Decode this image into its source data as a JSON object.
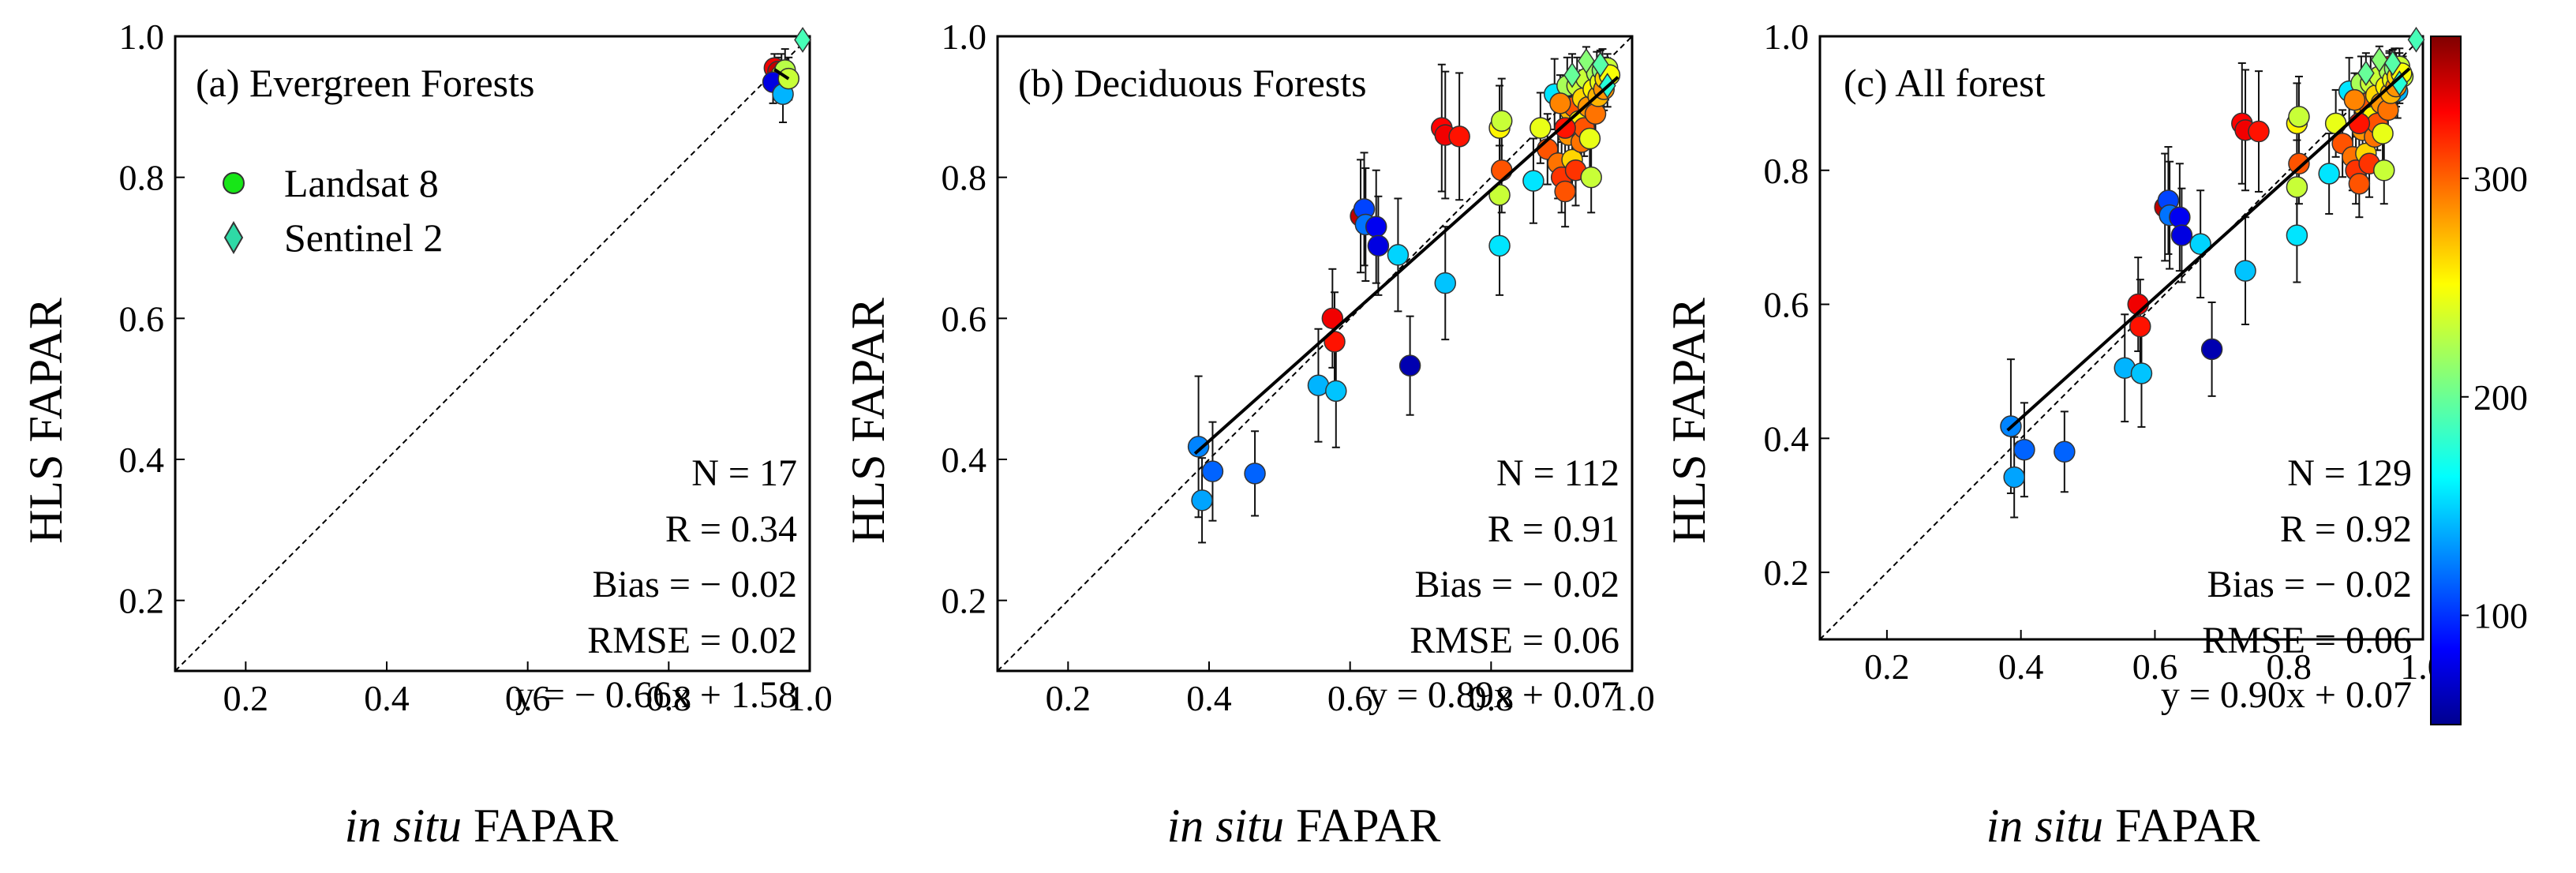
{
  "figure": {
    "ylabel": "HLS FAPAR",
    "xlabel_italic": "in situ",
    "xlabel_rest": " FAPAR",
    "xlim": [
      0.1,
      1.0
    ],
    "ylim": [
      0.1,
      1.0
    ],
    "xticks": [
      0.2,
      0.4,
      0.6,
      0.8,
      1.0
    ],
    "yticks": [
      0.2,
      0.4,
      0.6,
      0.8,
      1.0
    ],
    "tick_labels": [
      "0.2",
      "0.4",
      "0.6",
      "0.8",
      "1.0"
    ]
  },
  "legend": {
    "landsat_label": "Landsat 8",
    "sentinel_label": "Sentinel 2",
    "landsat_color": "#17e617",
    "sentinel_color": "#2ed9a6"
  },
  "colorbar": {
    "min": 50,
    "max": 365,
    "ticks": [
      100,
      200,
      300
    ],
    "tick_labels": [
      "100",
      "200",
      "300"
    ],
    "colormap": "jet"
  },
  "panels": [
    {
      "title": "(a) Evergreen Forests",
      "stats": [
        "N = 17",
        "R = 0.34",
        "Bias = − 0.02",
        "RMSE = 0.02",
        "y = − 0.66x + 1.58"
      ]
    },
    {
      "title": "(b) Deciduous Forests",
      "stats": [
        "N = 112",
        "R = 0.91",
        "Bias = − 0.02",
        "RMSE = 0.06",
        "y = 0.89x + 0.07"
      ]
    },
    {
      "title": "(c) All forest",
      "stats": [
        "N = 129",
        "R = 0.92",
        "Bias = − 0.02",
        "RMSE = 0.06",
        "y = 0.90x + 0.07"
      ]
    }
  ],
  "chart_data": [
    {
      "type": "scatter",
      "title": "(a) Evergreen Forests",
      "xlabel": "in situ FAPAR",
      "ylabel": "HLS FAPAR",
      "xlim": [
        0.1,
        1.0
      ],
      "ylim": [
        0.1,
        1.0
      ],
      "reference_line": "1:1",
      "regression": {
        "slope": -0.66,
        "intercept": 1.58,
        "x_range": [
          0.95,
          0.97
        ]
      },
      "points": [
        {
          "x": 0.95,
          "y": 0.955,
          "doy": 330,
          "sensor": "L8",
          "err": 0.02
        },
        {
          "x": 0.955,
          "y": 0.95,
          "doy": 345,
          "sensor": "L8",
          "err": 0.02
        },
        {
          "x": 0.96,
          "y": 0.945,
          "doy": 240,
          "sensor": "L8",
          "err": 0.03
        },
        {
          "x": 0.965,
          "y": 0.952,
          "doy": 225,
          "sensor": "L8",
          "err": 0.03
        },
        {
          "x": 0.948,
          "y": 0.935,
          "doy": 80,
          "sensor": "L8",
          "err": 0.03
        },
        {
          "x": 0.962,
          "y": 0.918,
          "doy": 145,
          "sensor": "L8",
          "err": 0.04
        },
        {
          "x": 0.97,
          "y": 0.94,
          "doy": 230,
          "sensor": "L8",
          "err": 0.03
        },
        {
          "x": 0.99,
          "y": 0.995,
          "doy": 190,
          "sensor": "S2",
          "err": 0.0
        }
      ]
    },
    {
      "type": "scatter",
      "title": "(b) Deciduous Forests",
      "xlabel": "in situ FAPAR",
      "ylabel": "HLS FAPAR",
      "xlim": [
        0.1,
        1.0
      ],
      "ylim": [
        0.1,
        1.0
      ],
      "reference_line": "1:1",
      "regression": {
        "slope": 0.89,
        "intercept": 0.07,
        "x_range": [
          0.38,
          0.98
        ]
      },
      "points": [
        {
          "x": 0.385,
          "y": 0.418,
          "doy": 130,
          "sensor": "L8",
          "err": 0.1
        },
        {
          "x": 0.39,
          "y": 0.342,
          "doy": 140,
          "sensor": "L8",
          "err": 0.06
        },
        {
          "x": 0.405,
          "y": 0.383,
          "doy": 120,
          "sensor": "L8",
          "err": 0.07
        },
        {
          "x": 0.465,
          "y": 0.38,
          "doy": 120,
          "sensor": "L8",
          "err": 0.06
        },
        {
          "x": 0.555,
          "y": 0.505,
          "doy": 145,
          "sensor": "L8",
          "err": 0.08
        },
        {
          "x": 0.58,
          "y": 0.497,
          "doy": 150,
          "sensor": "L8",
          "err": 0.08
        },
        {
          "x": 0.575,
          "y": 0.6,
          "doy": 330,
          "sensor": "L8",
          "err": 0.07
        },
        {
          "x": 0.578,
          "y": 0.567,
          "doy": 320,
          "sensor": "L8",
          "err": 0.07
        },
        {
          "x": 0.615,
          "y": 0.745,
          "doy": 345,
          "sensor": "L8",
          "err": 0.08
        },
        {
          "x": 0.62,
          "y": 0.755,
          "doy": 110,
          "sensor": "L8",
          "err": 0.08
        },
        {
          "x": 0.622,
          "y": 0.733,
          "doy": 125,
          "sensor": "L8",
          "err": 0.08
        },
        {
          "x": 0.637,
          "y": 0.73,
          "doy": 85,
          "sensor": "L8",
          "err": 0.08
        },
        {
          "x": 0.64,
          "y": 0.703,
          "doy": 80,
          "sensor": "L8",
          "err": 0.07
        },
        {
          "x": 0.668,
          "y": 0.69,
          "doy": 155,
          "sensor": "L8",
          "err": 0.08
        },
        {
          "x": 0.685,
          "y": 0.533,
          "doy": 65,
          "sensor": "L8",
          "err": 0.07
        },
        {
          "x": 0.735,
          "y": 0.65,
          "doy": 150,
          "sensor": "L8",
          "err": 0.08
        },
        {
          "x": 0.73,
          "y": 0.87,
          "doy": 325,
          "sensor": "L8",
          "err": 0.09
        },
        {
          "x": 0.735,
          "y": 0.86,
          "doy": 330,
          "sensor": "L8",
          "err": 0.09
        },
        {
          "x": 0.755,
          "y": 0.858,
          "doy": 320,
          "sensor": "L8",
          "err": 0.09
        },
        {
          "x": 0.812,
          "y": 0.775,
          "doy": 230,
          "sensor": "L8",
          "err": 0.07
        },
        {
          "x": 0.812,
          "y": 0.703,
          "doy": 160,
          "sensor": "L8",
          "err": 0.07
        },
        {
          "x": 0.812,
          "y": 0.87,
          "doy": 250,
          "sensor": "L8",
          "err": 0.06
        },
        {
          "x": 0.815,
          "y": 0.88,
          "doy": 230,
          "sensor": "L8",
          "err": 0.06
        },
        {
          "x": 0.815,
          "y": 0.81,
          "doy": 300,
          "sensor": "L8",
          "err": 0.06
        },
        {
          "x": 0.86,
          "y": 0.795,
          "doy": 160,
          "sensor": "L8",
          "err": 0.06
        },
        {
          "x": 0.87,
          "y": 0.87,
          "doy": 240,
          "sensor": "L8",
          "err": 0.05
        },
        {
          "x": 0.88,
          "y": 0.84,
          "doy": 300,
          "sensor": "L8",
          "err": 0.05
        },
        {
          "x": 0.89,
          "y": 0.918,
          "doy": 160,
          "sensor": "L8",
          "err": 0.05
        },
        {
          "x": 0.895,
          "y": 0.82,
          "doy": 290,
          "sensor": "L8",
          "err": 0.05
        },
        {
          "x": 0.9,
          "y": 0.8,
          "doy": 310,
          "sensor": "L8",
          "err": 0.05
        },
        {
          "x": 0.905,
          "y": 0.78,
          "doy": 300,
          "sensor": "L8",
          "err": 0.05
        },
        {
          "x": 0.908,
          "y": 0.93,
          "doy": 220,
          "sensor": "L8",
          "err": 0.04
        },
        {
          "x": 0.91,
          "y": 0.86,
          "doy": 280,
          "sensor": "L8",
          "err": 0.05
        },
        {
          "x": 0.912,
          "y": 0.895,
          "doy": 270,
          "sensor": "L8",
          "err": 0.04
        },
        {
          "x": 0.915,
          "y": 0.825,
          "doy": 260,
          "sensor": "L8",
          "err": 0.05
        },
        {
          "x": 0.918,
          "y": 0.9,
          "doy": 300,
          "sensor": "L8",
          "err": 0.04
        },
        {
          "x": 0.92,
          "y": 0.81,
          "doy": 310,
          "sensor": "L8",
          "err": 0.05
        },
        {
          "x": 0.922,
          "y": 0.93,
          "doy": 230,
          "sensor": "L8",
          "err": 0.04
        },
        {
          "x": 0.925,
          "y": 0.88,
          "doy": 250,
          "sensor": "L8",
          "err": 0.04
        },
        {
          "x": 0.928,
          "y": 0.85,
          "doy": 290,
          "sensor": "L8",
          "err": 0.05
        },
        {
          "x": 0.93,
          "y": 0.912,
          "doy": 260,
          "sensor": "L8",
          "err": 0.04
        },
        {
          "x": 0.932,
          "y": 0.87,
          "doy": 300,
          "sensor": "L8",
          "err": 0.04
        },
        {
          "x": 0.935,
          "y": 0.94,
          "doy": 230,
          "sensor": "L8",
          "err": 0.03
        },
        {
          "x": 0.938,
          "y": 0.9,
          "doy": 280,
          "sensor": "L8",
          "err": 0.04
        },
        {
          "x": 0.94,
          "y": 0.855,
          "doy": 240,
          "sensor": "L8",
          "err": 0.05
        },
        {
          "x": 0.942,
          "y": 0.8,
          "doy": 230,
          "sensor": "L8",
          "err": 0.05
        },
        {
          "x": 0.945,
          "y": 0.925,
          "doy": 250,
          "sensor": "L8",
          "err": 0.03
        },
        {
          "x": 0.948,
          "y": 0.89,
          "doy": 290,
          "sensor": "L8",
          "err": 0.04
        },
        {
          "x": 0.95,
          "y": 0.948,
          "doy": 220,
          "sensor": "L8",
          "err": 0.03
        },
        {
          "x": 0.952,
          "y": 0.915,
          "doy": 270,
          "sensor": "L8",
          "err": 0.03
        },
        {
          "x": 0.955,
          "y": 0.935,
          "doy": 240,
          "sensor": "L8",
          "err": 0.03
        },
        {
          "x": 0.958,
          "y": 0.952,
          "doy": 210,
          "sensor": "L8",
          "err": 0.03
        },
        {
          "x": 0.96,
          "y": 0.925,
          "doy": 280,
          "sensor": "L8",
          "err": 0.03
        },
        {
          "x": 0.962,
          "y": 0.94,
          "doy": 260,
          "sensor": "L8",
          "err": 0.03
        },
        {
          "x": 0.965,
          "y": 0.955,
          "doy": 230,
          "sensor": "L8",
          "err": 0.02
        },
        {
          "x": 0.968,
          "y": 0.945,
          "doy": 245,
          "sensor": "L8",
          "err": 0.02
        },
        {
          "x": 0.905,
          "y": 0.87,
          "doy": 320,
          "sensor": "L8",
          "err": 0.04
        },
        {
          "x": 0.898,
          "y": 0.905,
          "doy": 285,
          "sensor": "L8",
          "err": 0.04
        },
        {
          "x": 0.915,
          "y": 0.945,
          "doy": 200,
          "sensor": "S2",
          "err": 0.03
        },
        {
          "x": 0.935,
          "y": 0.965,
          "doy": 210,
          "sensor": "S2",
          "err": 0.02
        },
        {
          "x": 0.955,
          "y": 0.96,
          "doy": 195,
          "sensor": "S2",
          "err": 0.02
        },
        {
          "x": 0.965,
          "y": 0.93,
          "doy": 180,
          "sensor": "S2",
          "err": 0.03
        }
      ]
    },
    {
      "type": "scatter",
      "title": "(c) All forest",
      "xlabel": "in situ FAPAR",
      "ylabel": "HLS FAPAR",
      "xlim": [
        0.1,
        1.0
      ],
      "ylim": [
        0.1,
        1.0
      ],
      "reference_line": "1:1",
      "regression": {
        "slope": 0.9,
        "intercept": 0.07,
        "x_range": [
          0.38,
          0.98
        ]
      },
      "points": "panel (a) points combined with panel (b) points"
    }
  ]
}
